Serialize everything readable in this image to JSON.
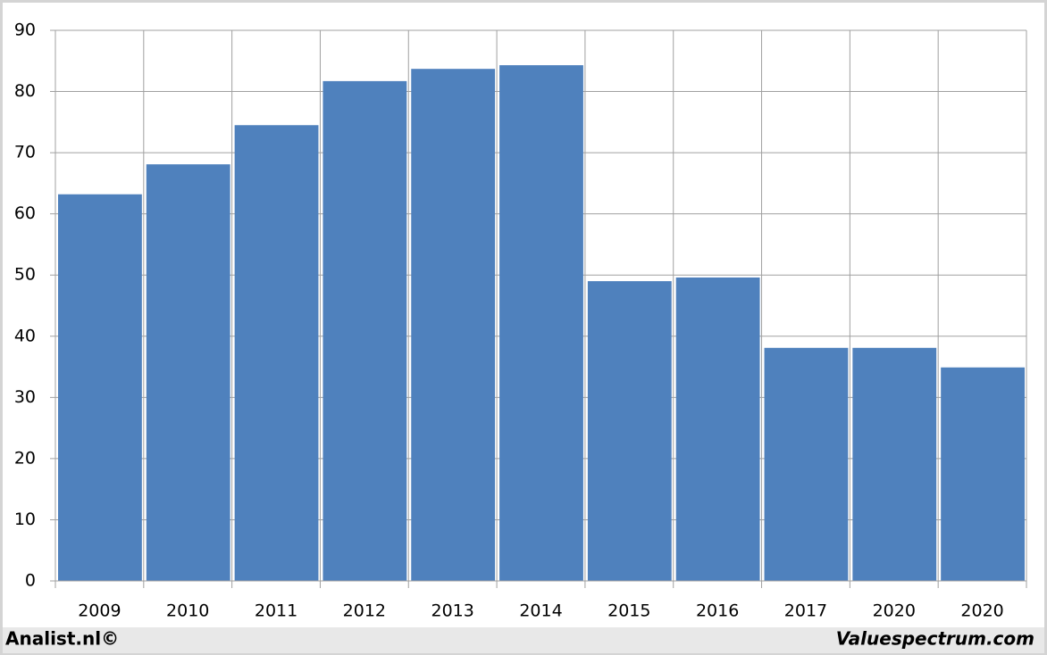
{
  "chart_data": {
    "type": "bar",
    "categories": [
      "2009",
      "2010",
      "2011",
      "2012",
      "2013",
      "2014",
      "2015",
      "2016",
      "2017",
      "2020",
      "2020"
    ],
    "values": [
      63.2,
      68.1,
      74.5,
      81.7,
      83.7,
      84.3,
      49.0,
      49.6,
      38.1,
      38.1,
      34.9
    ],
    "color": "#4f81bd",
    "ylim": [
      0,
      90
    ],
    "yticks": [
      0,
      10,
      20,
      30,
      40,
      50,
      60,
      70,
      80,
      90
    ],
    "grid": true,
    "source": "Analist.nl©",
    "credit": "Valuespectrum.com"
  }
}
